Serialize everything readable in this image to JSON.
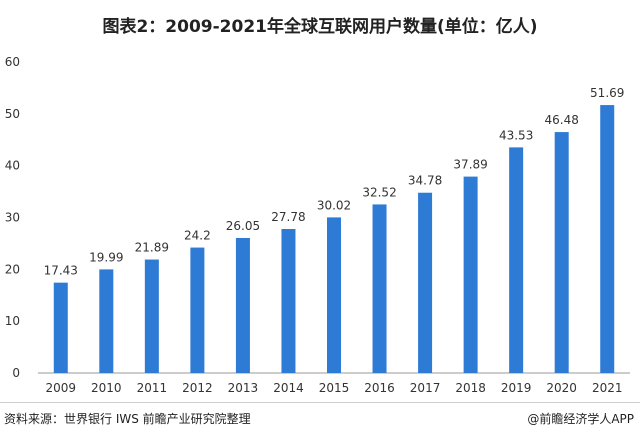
{
  "chart_data": {
    "type": "bar",
    "title": "图表2：2009-2021年全球互联网用户数量(单位：亿人)",
    "categories": [
      "2009",
      "2010",
      "2011",
      "2012",
      "2013",
      "2014",
      "2015",
      "2016",
      "2017",
      "2018",
      "2019",
      "2020",
      "2021"
    ],
    "values": [
      17.43,
      19.99,
      21.89,
      24.2,
      26.05,
      27.78,
      30.02,
      32.52,
      34.78,
      37.89,
      43.53,
      46.48,
      51.69
    ],
    "value_labels": [
      "17.43",
      "19.99",
      "21.89",
      "24.2",
      "26.05",
      "27.78",
      "30.02",
      "32.52",
      "34.78",
      "37.89",
      "43.53",
      "46.48",
      "51.69"
    ],
    "yticks": [
      "0",
      "10",
      "20",
      "30",
      "40",
      "50",
      "60"
    ],
    "ylim": [
      0,
      60
    ],
    "xlabel": "",
    "ylabel": "",
    "grid": false,
    "bar_color": "#2e7bd6"
  },
  "footer": {
    "source": "资料来源：世界银行 IWS 前瞻产业研究院整理",
    "credit": "@前瞻经济学人APP"
  }
}
